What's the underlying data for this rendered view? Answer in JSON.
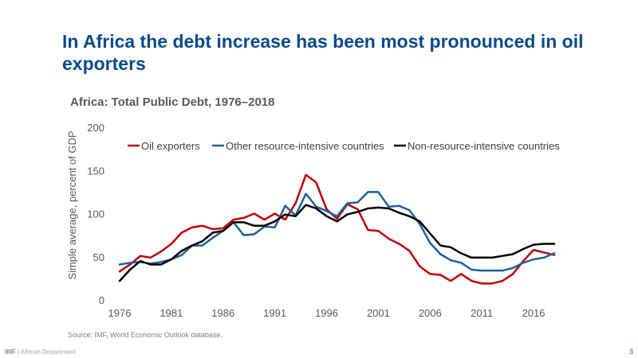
{
  "slide": {
    "title": "In Africa the debt increase has been most pronounced in oil exporters",
    "source": "Source: IMF, World Economic Outlook database.",
    "footer_org": "IMF",
    "footer_dept": "| African Department",
    "page_number": "3"
  },
  "chart_data": {
    "type": "line",
    "title": "Africa: Total Public Debt, 1976–2018",
    "xlabel": "",
    "ylabel": "Simple average, percent of GDP",
    "xlim": [
      1976,
      2018
    ],
    "ylim": [
      0,
      200
    ],
    "yticks": [
      0,
      50,
      100,
      150,
      200
    ],
    "xticks": [
      1976,
      1981,
      1986,
      1991,
      1996,
      2001,
      2006,
      2011,
      2016
    ],
    "grid": false,
    "legend_position": "top",
    "x": [
      1976,
      1977,
      1978,
      1979,
      1980,
      1981,
      1982,
      1983,
      1984,
      1985,
      1986,
      1987,
      1988,
      1989,
      1990,
      1991,
      1992,
      1993,
      1994,
      1995,
      1996,
      1997,
      1998,
      1999,
      2000,
      2001,
      2002,
      2003,
      2004,
      2005,
      2006,
      2007,
      2008,
      2009,
      2010,
      2011,
      2012,
      2013,
      2014,
      2015,
      2016,
      2017,
      2018
    ],
    "series": [
      {
        "name": "Oil exporters",
        "color": "#c00000",
        "values": [
          33,
          41,
          51,
          49,
          56,
          65,
          78,
          84,
          86,
          82,
          83,
          93,
          95,
          100,
          93,
          100,
          93,
          112,
          145,
          136,
          105,
          94,
          111,
          105,
          81,
          80,
          71,
          65,
          57,
          39,
          30,
          29,
          22,
          30,
          22,
          19,
          19,
          22,
          30,
          45,
          58,
          55,
          52
        ]
      },
      {
        "name": "Other resource-intensive countries",
        "color": "#1f5fa0",
        "values": [
          41,
          43,
          44,
          42,
          44,
          47,
          52,
          63,
          63,
          72,
          80,
          90,
          75,
          76,
          85,
          84,
          109,
          98,
          123,
          108,
          103,
          97,
          112,
          113,
          125,
          125,
          108,
          109,
          104,
          88,
          66,
          53,
          46,
          43,
          35,
          34,
          34,
          34,
          37,
          43,
          47,
          49,
          54
        ]
      },
      {
        "name": "Non-resource-intensive countries",
        "color": "#000000",
        "values": [
          22,
          35,
          45,
          41,
          41,
          47,
          57,
          63,
          68,
          78,
          80,
          90,
          90,
          86,
          86,
          91,
          99,
          97,
          110,
          106,
          97,
          91,
          99,
          102,
          106,
          107,
          106,
          101,
          97,
          91,
          77,
          63,
          61,
          54,
          49,
          49,
          49,
          51,
          53,
          59,
          64,
          65,
          65
        ]
      }
    ]
  }
}
